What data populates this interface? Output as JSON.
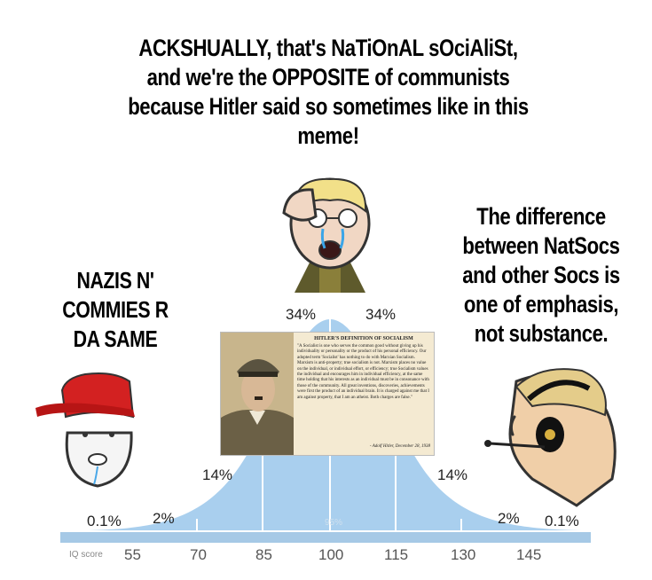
{
  "captions": {
    "top": "ACKSHUALLY, that's NaTiOnAL sOciAliSt, and we're the OPPOSITE of communists because Hitler said so sometimes like in this meme!",
    "left": "NAZIS N' COMMIES R DA SAME",
    "right": "The difference between NatSocs and other Socs is one of emphasis, not substance."
  },
  "bell_curve": {
    "percentages": [
      "0.1%",
      "2%",
      "14%",
      "34%",
      "34%",
      "14%",
      "2%",
      "0.1%"
    ],
    "axis_label": "IQ score",
    "ticks": [
      "55",
      "70",
      "85",
      "100",
      "115",
      "130",
      "145"
    ],
    "watermark": "95%",
    "fill_color": "#a9cfee",
    "axis_color": "#a6c9e6"
  },
  "hitler_card": {
    "title": "HITLER'S DEFINITION OF SOCIALISM",
    "quote": "\"A Socialist is one who serves the common good without giving up his individuality or personality or the product of his personal efficiency. Our adopted term 'Socialist' has nothing to do with Marxian Socialism. Marxism is anti-property; true socialism is not. Marxism places no value on the individual, or individual effort, or efficiency; true Socialism values the individual and encourages him in individual efficiency, at the same time holding that his interests as an individual must be in consonance with those of the community. All great inventions, discoveries, achievements were first the product of an individual brain. It is charged against me that I am against property, that I am an atheist. Both charges are false.\"",
    "attribution": "- Adolf Hitler, December 28, 1938"
  },
  "characters": {
    "left": "maga-hat-wojak",
    "center": "crying-soyjak",
    "right": "headset-chad"
  }
}
